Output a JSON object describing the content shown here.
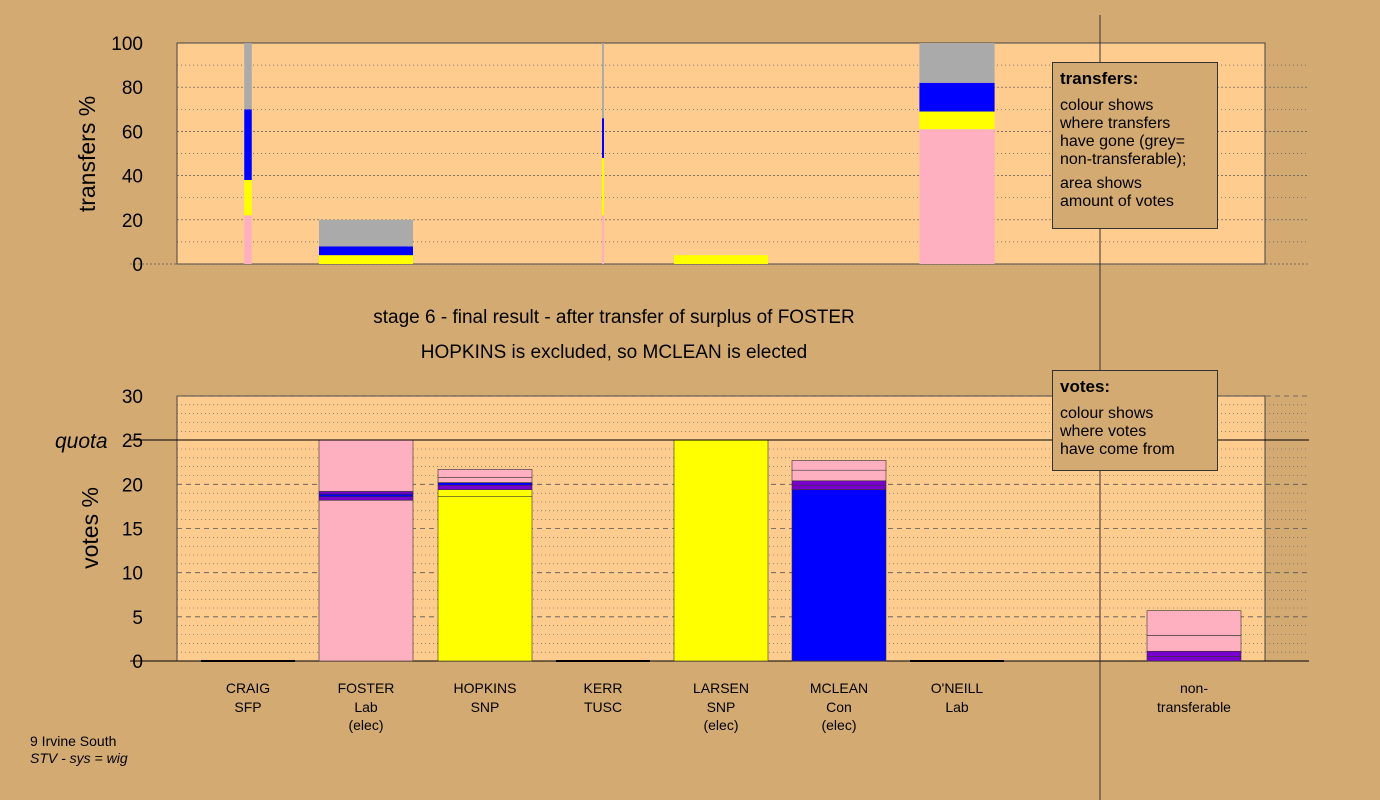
{
  "chart_data": [
    {
      "type": "bar",
      "stacked": true,
      "ylabel": "transfers %",
      "ylim": [
        0,
        100
      ],
      "yticks": [
        0,
        20,
        40,
        60,
        80,
        100
      ],
      "categories": [
        "CRAIG",
        "FOSTER",
        "HOPKINS",
        "KERR",
        "LARSEN",
        "MCLEAN",
        "O'NEILL"
      ],
      "bar_share": [
        0.08,
        1.0,
        0,
        0.02,
        1.0,
        0,
        0.8
      ],
      "series": [
        {
          "color": "#ffb0c0",
          "values": [
            22,
            0,
            0,
            22,
            0,
            0,
            61
          ]
        },
        {
          "color": "#ffff00",
          "values": [
            16,
            4,
            0,
            26,
            4,
            0,
            8
          ]
        },
        {
          "color": "#0000ff",
          "values": [
            32,
            4,
            0,
            18,
            0,
            0,
            13
          ]
        },
        {
          "color": "#aaaaaa",
          "values": [
            30,
            12,
            0,
            34,
            0,
            0,
            18
          ]
        }
      ]
    },
    {
      "type": "bar",
      "stacked": true,
      "ylabel": "votes %",
      "ylim": [
        0,
        30
      ],
      "yticks": [
        0,
        5,
        10,
        15,
        20,
        25,
        30
      ],
      "quota": 25,
      "quota_label": "quota",
      "categories": [
        "CRAIG",
        "FOSTER",
        "HOPKINS",
        "KERR",
        "LARSEN",
        "MCLEAN",
        "O'NEILL",
        "non-transferable"
      ],
      "segments": [
        [],
        [
          [
            "#ffb0c0",
            18.2
          ],
          [
            "#7a00d0",
            0.4
          ],
          [
            "#0000ff",
            0.3
          ],
          [
            "#7a00d0",
            0.3
          ],
          [
            "#ffb0c0",
            5.8
          ]
        ],
        [
          [
            "#ffff00",
            18.6
          ],
          [
            "#ffff00",
            0.8
          ],
          [
            "#7a00d0",
            0.5
          ],
          [
            "#0000ff",
            0.3
          ],
          [
            "#ffb0c0",
            0.6
          ],
          [
            "#ffb0c0",
            0.9
          ]
        ],
        [],
        [
          [
            "#ffff00",
            25.0
          ]
        ],
        [
          [
            "#0000ff",
            19.4
          ],
          [
            "#7a00d0",
            0.5
          ],
          [
            "#7a00d0",
            0.5
          ],
          [
            "#ffb0c0",
            1.2
          ],
          [
            "#ffb0c0",
            1.1
          ]
        ],
        [],
        [
          [
            "#7a00d0",
            0.5
          ],
          [
            "#7a00d0",
            0.6
          ],
          [
            "#ffb0c0",
            1.8
          ],
          [
            "#ffb0c0",
            2.8
          ]
        ]
      ]
    }
  ],
  "caption": {
    "line1": "stage 6 - final result - after transfer of surplus of FOSTER",
    "line2": "HOPKINS is excluded, so MCLEAN is elected"
  },
  "candidates": [
    {
      "name": "CRAIG",
      "party": "SFP",
      "status": ""
    },
    {
      "name": "FOSTER",
      "party": "Lab",
      "status": "(elec)"
    },
    {
      "name": "HOPKINS",
      "party": "SNP",
      "status": ""
    },
    {
      "name": "KERR",
      "party": "TUSC",
      "status": ""
    },
    {
      "name": "LARSEN",
      "party": "SNP",
      "status": "(elec)"
    },
    {
      "name": "MCLEAN",
      "party": "Con",
      "status": "(elec)"
    },
    {
      "name": "O'NEILL",
      "party": "Lab",
      "status": ""
    },
    {
      "name": "non-",
      "party": "transferable",
      "status": ""
    }
  ],
  "legend_transfers": {
    "title": "transfers:",
    "lines": [
      "colour shows",
      "where transfers",
      "have gone (grey=",
      "non-transferable);"
    ],
    "lines2": [
      "area shows",
      "amount of votes"
    ]
  },
  "legend_votes": {
    "title": "votes:",
    "lines": [
      "colour shows",
      "where votes",
      "have come from"
    ]
  },
  "footer": {
    "line1": "9 Irvine South",
    "line2": "STV - sys = wig"
  },
  "colors": {
    "background": "#d4aa73",
    "plot_bg": "#ffcc8f",
    "pink": "#ffb0c0",
    "yellow": "#ffff00",
    "blue": "#0000ff",
    "purple": "#7a00d0",
    "grey": "#aaaaaa"
  }
}
